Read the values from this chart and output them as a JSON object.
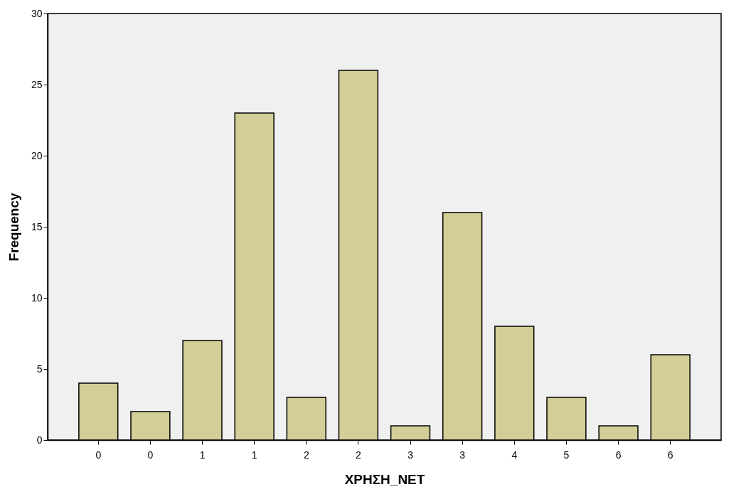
{
  "chart_data": {
    "type": "bar",
    "xlabel": "ΧΡΗΣΗ_ΝΕΤ",
    "ylabel": "Frequency",
    "categories": [
      "0",
      "0",
      "1",
      "1",
      "2",
      "2",
      "3",
      "3",
      "4",
      "5",
      "6",
      "6"
    ],
    "values": [
      4,
      2,
      7,
      23,
      3,
      26,
      1,
      16,
      8,
      3,
      1,
      6
    ],
    "color": "#d3ce97",
    "ylim": [
      0,
      30
    ],
    "yticks": [
      0,
      5,
      10,
      15,
      20,
      25,
      30
    ],
    "grid": false
  }
}
